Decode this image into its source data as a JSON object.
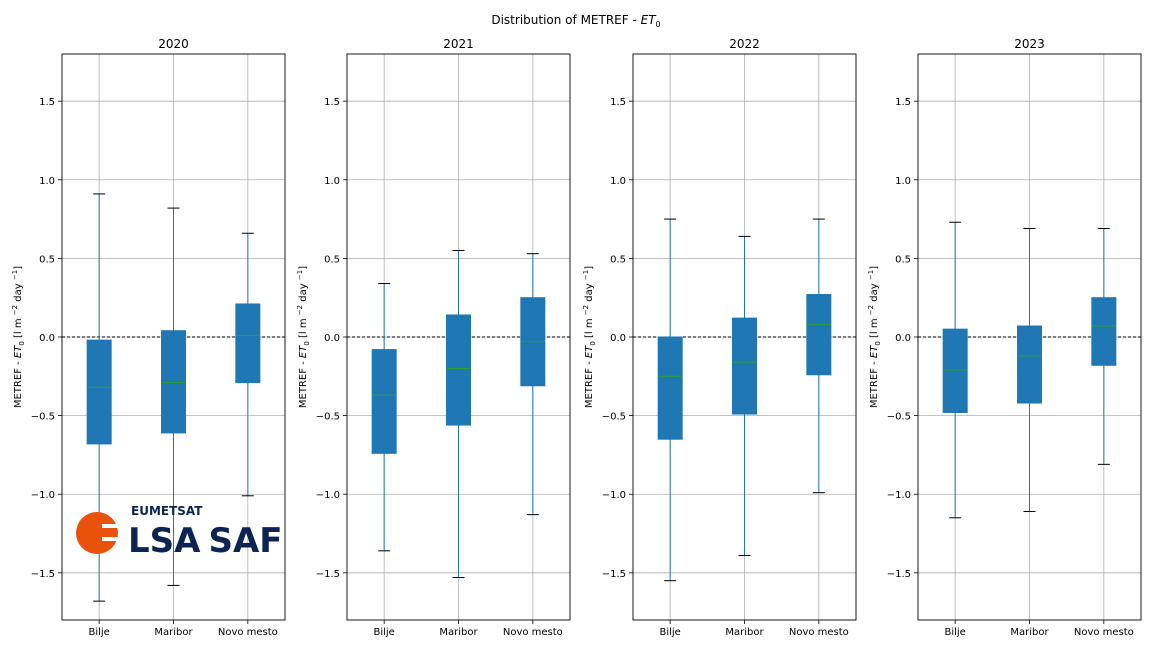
{
  "figure": {
    "suptitle_prefix": "Distribution of METREF - ",
    "suptitle_symbol": "ET",
    "suptitle_sub": "0"
  },
  "ylabel": {
    "prefix": "METREF - ",
    "symbol": "ET",
    "sub": "0",
    "units_a": " [l m ",
    "units_exp1": "−2",
    "units_b": " day ",
    "units_exp2": "−1",
    "units_c": "]"
  },
  "logo": {
    "line1": "EUMETSAT",
    "line2a": "LSA",
    "line2b": "SAF",
    "colors": {
      "orange": "#e8520a",
      "navy": "#0c2353"
    }
  },
  "colors": {
    "box": "#1f77b4",
    "median": "#2ca02c",
    "grid": "#b0b0b0",
    "zero": "#000000"
  },
  "chart_data": [
    {
      "type": "box",
      "title": "2020",
      "categories": [
        "Bilje",
        "Maribor",
        "Novo mesto"
      ],
      "ylim": [
        -1.8,
        1.8
      ],
      "yticks": [
        -1.5,
        -1.0,
        -0.5,
        0.0,
        0.5,
        1.0,
        1.5
      ],
      "reference_line": 0.0,
      "grid": true,
      "boxes": [
        {
          "whislo": -1.68,
          "q1": -0.68,
          "med": -0.32,
          "q3": -0.02,
          "whishi": 0.91
        },
        {
          "whislo": -1.58,
          "q1": -0.61,
          "med": -0.29,
          "q3": 0.04,
          "whishi": 0.82
        },
        {
          "whislo": -1.01,
          "q1": -0.29,
          "med": 0.01,
          "q3": 0.21,
          "whishi": 0.66
        }
      ]
    },
    {
      "type": "box",
      "title": "2021",
      "categories": [
        "Bilje",
        "Maribor",
        "Novo mesto"
      ],
      "ylim": [
        -1.8,
        1.8
      ],
      "yticks": [
        -1.5,
        -1.0,
        -0.5,
        0.0,
        0.5,
        1.0,
        1.5
      ],
      "reference_line": 0.0,
      "grid": true,
      "boxes": [
        {
          "whislo": -1.36,
          "q1": -0.74,
          "med": -0.37,
          "q3": -0.08,
          "whishi": 0.34
        },
        {
          "whislo": -1.53,
          "q1": -0.56,
          "med": -0.2,
          "q3": 0.14,
          "whishi": 0.55
        },
        {
          "whislo": -1.13,
          "q1": -0.31,
          "med": -0.03,
          "q3": 0.25,
          "whishi": 0.53
        }
      ]
    },
    {
      "type": "box",
      "title": "2022",
      "categories": [
        "Bilje",
        "Maribor",
        "Novo mesto"
      ],
      "ylim": [
        -1.8,
        1.8
      ],
      "yticks": [
        -1.5,
        -1.0,
        -0.5,
        0.0,
        0.5,
        1.0,
        1.5
      ],
      "reference_line": 0.0,
      "grid": true,
      "boxes": [
        {
          "whislo": -1.55,
          "q1": -0.65,
          "med": -0.25,
          "q3": 0.0,
          "whishi": 0.75
        },
        {
          "whislo": -1.39,
          "q1": -0.49,
          "med": -0.16,
          "q3": 0.12,
          "whishi": 0.64
        },
        {
          "whislo": -0.99,
          "q1": -0.24,
          "med": 0.08,
          "q3": 0.27,
          "whishi": 0.75
        }
      ]
    },
    {
      "type": "box",
      "title": "2023",
      "categories": [
        "Bilje",
        "Maribor",
        "Novo mesto"
      ],
      "ylim": [
        -1.8,
        1.8
      ],
      "yticks": [
        -1.5,
        -1.0,
        -0.5,
        0.0,
        0.5,
        1.0,
        1.5
      ],
      "reference_line": 0.0,
      "grid": true,
      "boxes": [
        {
          "whislo": -1.15,
          "q1": -0.48,
          "med": -0.21,
          "q3": 0.05,
          "whishi": 0.73
        },
        {
          "whislo": -1.11,
          "q1": -0.42,
          "med": -0.12,
          "q3": 0.07,
          "whishi": 0.69
        },
        {
          "whislo": -0.81,
          "q1": -0.18,
          "med": 0.07,
          "q3": 0.25,
          "whishi": 0.69
        }
      ]
    }
  ]
}
